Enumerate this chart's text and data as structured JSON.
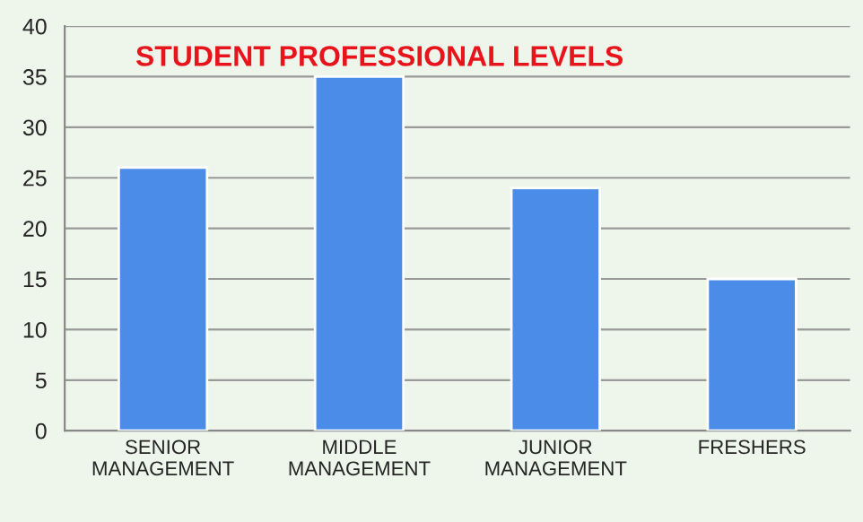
{
  "chart_data": {
    "type": "bar",
    "title": "STUDENT PROFESSIONAL LEVELS",
    "categories": [
      "SENIOR\nMANAGEMENT",
      "MIDDLE\nMANAGEMENT",
      "JUNIOR\nMANAGEMENT",
      "FRESHERS"
    ],
    "values": [
      26,
      35,
      24,
      15
    ],
    "color": "#4a8ce8",
    "ylim": [
      0,
      40
    ],
    "yticks": [
      0,
      5,
      10,
      15,
      20,
      25,
      30,
      35,
      40
    ],
    "grid": "y",
    "legend": false
  }
}
